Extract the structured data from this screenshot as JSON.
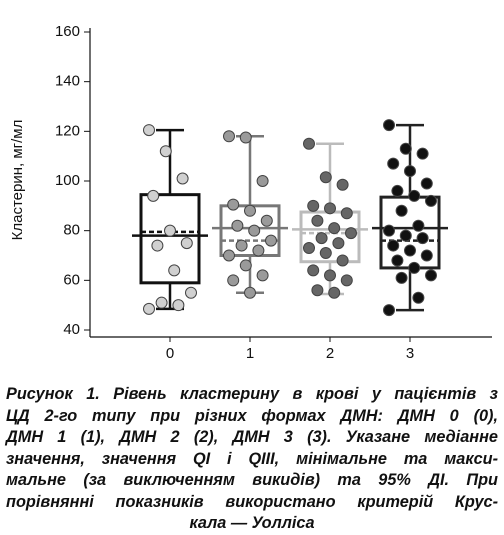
{
  "chart_data": {
    "type": "box",
    "y_label": "Кластерин, мг/мл",
    "categories": [
      "0",
      "1",
      "2",
      "3"
    ],
    "ylim": [
      40,
      160
    ],
    "yticks": [
      40,
      60,
      80,
      100,
      120,
      140,
      160
    ],
    "boxes": [
      {
        "color": "#111111",
        "point_color": "#d0d0d0",
        "q1": 59,
        "median": 78,
        "q3": 94.5,
        "whisker_low": 48.5,
        "whisker_high": 120.5,
        "mean": 79.5,
        "values": [
          120.5,
          112,
          101,
          94,
          80,
          75,
          74,
          64,
          55,
          51,
          50,
          48.5
        ]
      },
      {
        "color": "#777777",
        "point_color": "#9a9a9a",
        "q1": 70,
        "median": 81,
        "q3": 90,
        "whisker_low": 55,
        "whisker_high": 118,
        "mean": 76,
        "values": [
          118,
          117.5,
          100,
          90.5,
          88,
          84,
          82,
          80,
          76,
          74,
          72,
          70,
          66,
          62,
          60,
          55
        ]
      },
      {
        "color": "#bbbbbb",
        "point_color": "#666666",
        "q1": 67.5,
        "median": 80.5,
        "q3": 87.5,
        "whisker_low": 54.5,
        "whisker_high": 115,
        "mean": 79,
        "values": [
          115,
          101.5,
          98.5,
          90,
          89,
          87,
          84,
          81,
          79,
          77,
          75,
          73,
          71,
          68,
          64,
          62,
          60,
          56,
          55
        ]
      },
      {
        "color": "#222222",
        "point_color": "#111111",
        "q1": 65,
        "median": 81,
        "q3": 93.5,
        "whisker_low": 48,
        "whisker_high": 122.5,
        "mean": 76,
        "values": [
          122.5,
          113,
          111,
          107,
          104,
          99,
          96,
          94,
          92,
          88,
          82,
          80,
          78,
          77,
          74,
          72,
          70,
          68,
          65,
          62,
          61,
          53,
          48
        ]
      }
    ],
    "caption": [
      "Рисунок 1. Рівень кластерину в крові у пацієнтів з",
      "ЦД 2-го типу при різних формах ДМН: ДМН 0 (0),",
      "ДМН 1 (1), ДМН 2 (2), ДМН 3 (3). Указане медіанне",
      "значення, значення QI і QIII, мінімальне та макси-",
      "мальне (за виключенням викидів) та 95% ДІ. При",
      "порівнянні показників використано критерій Крус-",
      "кала — Уолліса"
    ]
  }
}
